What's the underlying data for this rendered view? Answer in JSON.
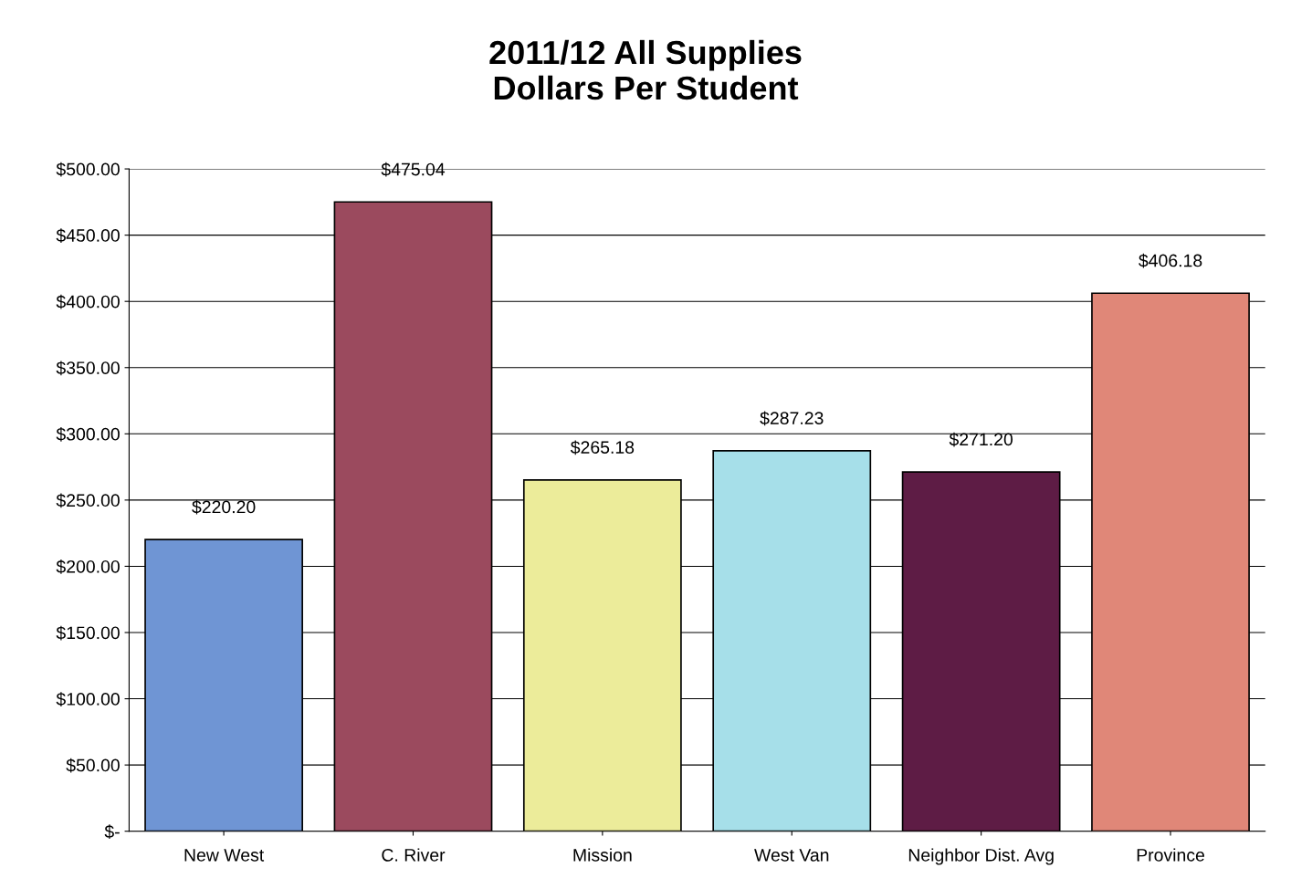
{
  "chart_data": {
    "type": "bar",
    "title": "2011/12 All Supplies\nDollars Per Student",
    "categories": [
      "New West",
      "C. River",
      "Mission",
      "West Van",
      "Neighbor Dist. Avg",
      "Province"
    ],
    "values": [
      220.2,
      475.04,
      265.18,
      287.23,
      271.2,
      406.18
    ],
    "value_labels": [
      "$220.20",
      "$475.04",
      "$265.18",
      "$287.23",
      "$271.20",
      "$406.18"
    ],
    "colors": [
      "#6f95d4",
      "#9b4a5e",
      "#ecec9a",
      "#a6dfe9",
      "#5e1c45",
      "#e08778"
    ],
    "ylim": [
      0,
      500
    ],
    "yticks": [
      {
        "value": 0,
        "label": "$-"
      },
      {
        "value": 50,
        "label": "$50.00"
      },
      {
        "value": 100,
        "label": "$100.00"
      },
      {
        "value": 150,
        "label": "$150.00"
      },
      {
        "value": 200,
        "label": "$200.00"
      },
      {
        "value": 250,
        "label": "$250.00"
      },
      {
        "value": 300,
        "label": "$300.00"
      },
      {
        "value": 350,
        "label": "$350.00"
      },
      {
        "value": 400,
        "label": "$400.00"
      },
      {
        "value": 450,
        "label": "$450.00"
      },
      {
        "value": 500,
        "label": "$500.00"
      }
    ],
    "grid": "y",
    "legend": false
  }
}
